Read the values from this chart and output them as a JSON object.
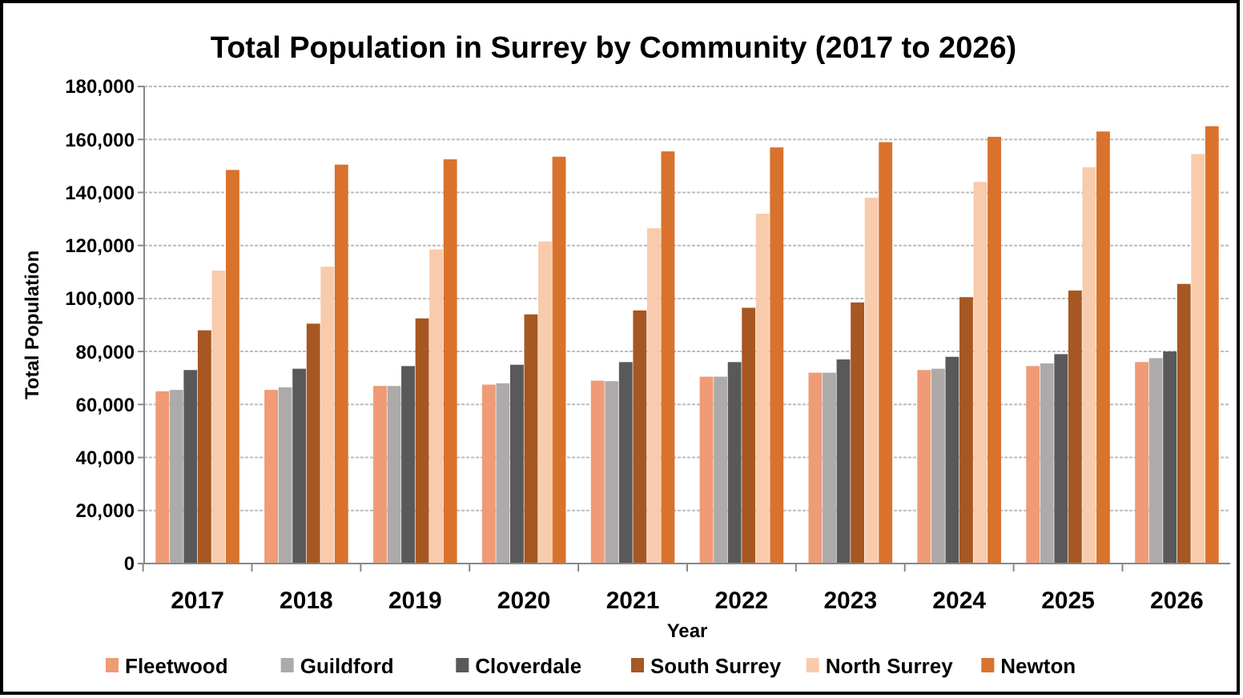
{
  "chart_data": {
    "type": "bar",
    "title": "Total Population in Surrey by Community (2017 to 2026)",
    "xlabel": "Year",
    "ylabel": "Total Population",
    "categories": [
      "2017",
      "2018",
      "2019",
      "2020",
      "2021",
      "2022",
      "2023",
      "2024",
      "2025",
      "2026"
    ],
    "series": [
      {
        "name": "Fleetwood",
        "color": "#ef9b76",
        "values": [
          65000,
          65500,
          67000,
          67500,
          69000,
          70500,
          72000,
          73000,
          74500,
          76000
        ]
      },
      {
        "name": "Guildford",
        "color": "#aeaaaa",
        "values": [
          65500,
          66500,
          67000,
          68000,
          68800,
          70500,
          72000,
          73500,
          75500,
          77500
        ]
      },
      {
        "name": "Cloverdale",
        "color": "#595959",
        "values": [
          73000,
          73500,
          74500,
          75000,
          76000,
          76000,
          77000,
          78000,
          79000,
          80000
        ]
      },
      {
        "name": "South Surrey",
        "color": "#a65722",
        "values": [
          88000,
          90500,
          92500,
          94000,
          95500,
          96500,
          98500,
          100500,
          103000,
          105500
        ]
      },
      {
        "name": "North Surrey",
        "color": "#f8cbac",
        "values": [
          110500,
          112000,
          118500,
          121500,
          126500,
          132000,
          138000,
          144000,
          149500,
          154500
        ]
      },
      {
        "name": "Newton",
        "color": "#d9722d",
        "values": [
          148500,
          150500,
          152500,
          153500,
          155500,
          157000,
          159000,
          161000,
          163000,
          165000
        ]
      }
    ],
    "ylim": [
      0,
      180000
    ],
    "yticks": [
      {
        "value": 0,
        "label": "0"
      },
      {
        "value": 20000,
        "label": "20,000"
      },
      {
        "value": 40000,
        "label": "40,000"
      },
      {
        "value": 60000,
        "label": "60,000"
      },
      {
        "value": 80000,
        "label": "80,000"
      },
      {
        "value": 100000,
        "label": "100,000"
      },
      {
        "value": 120000,
        "label": "120,000"
      },
      {
        "value": 140000,
        "label": "140,000"
      },
      {
        "value": 160000,
        "label": "160,000"
      },
      {
        "value": 180000,
        "label": "180,000"
      }
    ],
    "grid": "y",
    "legend": "bottom"
  }
}
